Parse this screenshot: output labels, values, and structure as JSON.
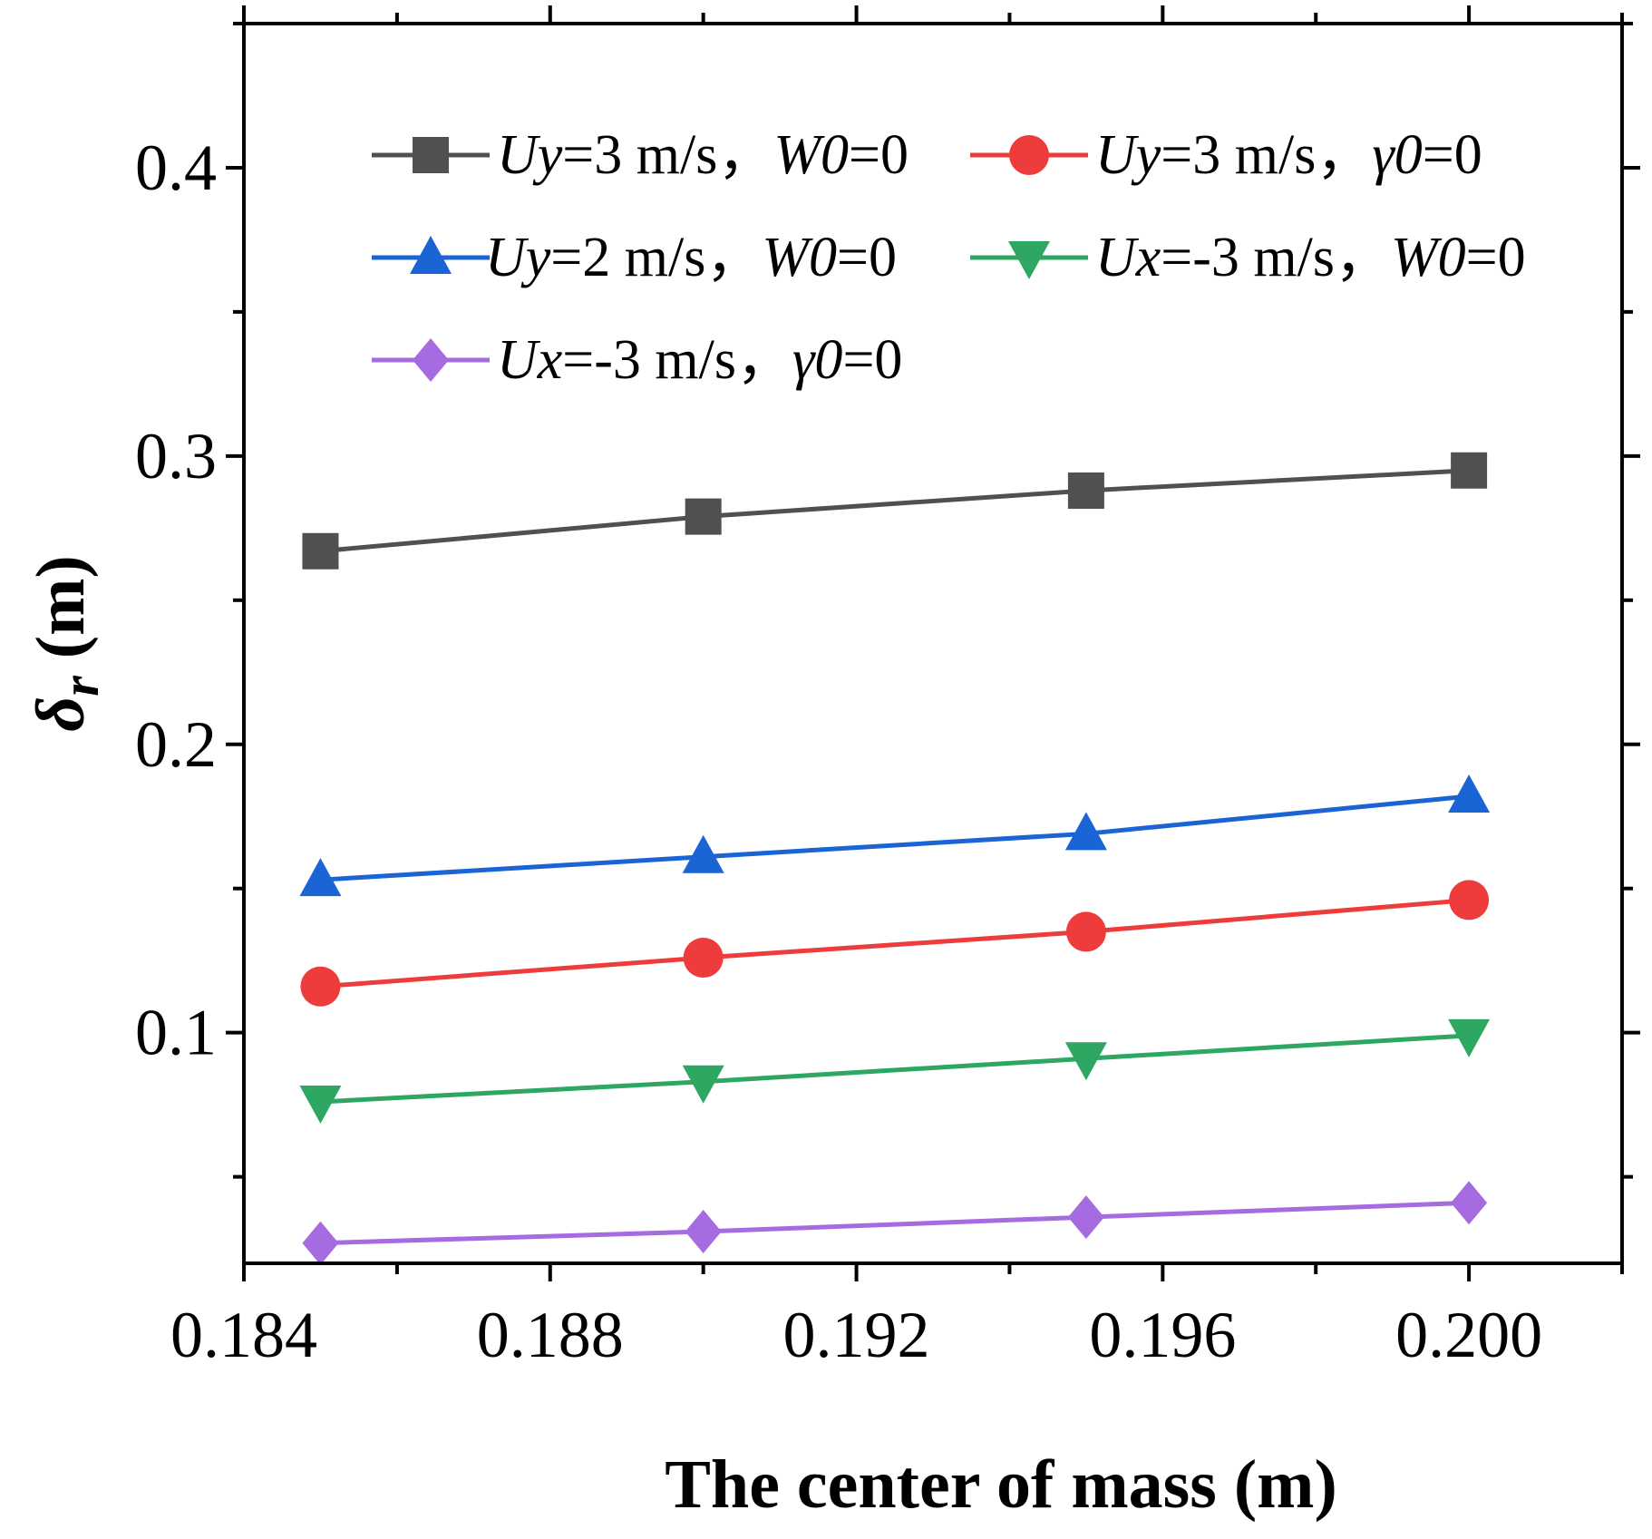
{
  "chart_data": {
    "type": "line",
    "title": "",
    "xlabel": "The center of mass (m)",
    "ylabel_symbol": "δ",
    "ylabel_subscript": "r",
    "ylabel_unit": "(m)",
    "xlim": [
      0.184,
      0.202
    ],
    "ylim": [
      0.02,
      0.45
    ],
    "xticks": [
      0.184,
      0.188,
      0.192,
      0.196,
      0.2
    ],
    "xtick_labels": [
      "0.184",
      "0.188",
      "0.192",
      "0.196",
      "0.200"
    ],
    "yticks": [
      0.1,
      0.2,
      0.3,
      0.4
    ],
    "ytick_labels": [
      "0.1",
      "0.2",
      "0.3",
      "0.4"
    ],
    "x": [
      0.185,
      0.19,
      0.195,
      0.2
    ],
    "legend_position": "top",
    "grid": false,
    "series": [
      {
        "id": "s1",
        "name": "Uy=3 m/s, W0=0",
        "color": "#505050",
        "marker": "square",
        "values": [
          0.267,
          0.279,
          0.288,
          0.295
        ],
        "label_parts": [
          {
            "t": "Uy",
            "it": true
          },
          {
            "t": "=3 m/s，",
            "it": false
          },
          {
            "t": "W0",
            "it": true
          },
          {
            "t": "=0",
            "it": false
          }
        ]
      },
      {
        "id": "s2",
        "name": "Uy=3 m/s, γ0=0",
        "color": "#ee3b3b",
        "marker": "circle",
        "values": [
          0.116,
          0.126,
          0.135,
          0.146
        ],
        "label_parts": [
          {
            "t": "Uy",
            "it": true
          },
          {
            "t": "=3 m/s，",
            "it": false
          },
          {
            "t": "γ0",
            "it": true
          },
          {
            "t": "=0",
            "it": false
          }
        ]
      },
      {
        "id": "s3",
        "name": "Uy=2 m/s, W0=0",
        "color": "#1a64d6",
        "marker": "triangle-up",
        "values": [
          0.153,
          0.161,
          0.169,
          0.182
        ],
        "label_parts": [
          {
            "t": "Uy",
            "it": true
          },
          {
            "t": "=2 m/s，",
            "it": false
          },
          {
            "t": "W0",
            "it": true
          },
          {
            "t": "=0",
            "it": false
          }
        ]
      },
      {
        "id": "s4",
        "name": "Ux=-3 m/s, W0=0",
        "color": "#2ea763",
        "marker": "triangle-down",
        "values": [
          0.076,
          0.083,
          0.091,
          0.099
        ],
        "label_parts": [
          {
            "t": "Ux",
            "it": true
          },
          {
            "t": "=-3 m/s，",
            "it": false
          },
          {
            "t": "W0",
            "it": true
          },
          {
            "t": "=0",
            "it": false
          }
        ]
      },
      {
        "id": "s5",
        "name": "Ux=-3 m/s, γ0=0",
        "color": "#a66be0",
        "marker": "diamond",
        "values": [
          0.027,
          0.031,
          0.036,
          0.041
        ],
        "label_parts": [
          {
            "t": "Ux",
            "it": true
          },
          {
            "t": "=-3 m/s，",
            "it": false
          },
          {
            "t": "γ0",
            "it": true
          },
          {
            "t": "=0",
            "it": false
          }
        ]
      }
    ]
  }
}
